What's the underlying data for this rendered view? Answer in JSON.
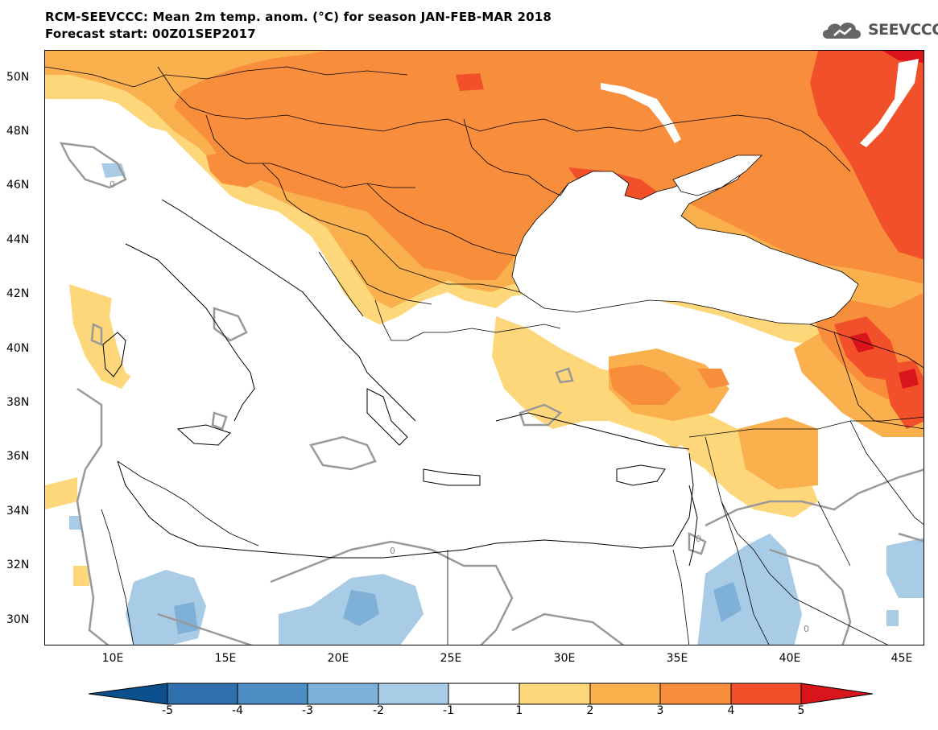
{
  "title_line1": "RCM-SEEVCCC: Mean 2m temp. anom. (°C) for season JAN-FEB-MAR 2018",
  "title_line2": "Forecast start: 00Z01SEP2017",
  "logo": {
    "text": "SEEVCCC",
    "icon": "cloud-logo-icon"
  },
  "map": {
    "lon_range": [
      7,
      46
    ],
    "lat_range": [
      29,
      51
    ],
    "lat_labels": [
      "50N",
      "48N",
      "46N",
      "44N",
      "42N",
      "40N",
      "38N",
      "36N",
      "34N",
      "32N",
      "30N"
    ],
    "lat_values": [
      50,
      48,
      46,
      44,
      42,
      40,
      38,
      36,
      34,
      32,
      30
    ],
    "lon_labels": [
      "10E",
      "15E",
      "20E",
      "25E",
      "30E",
      "35E",
      "40E",
      "45E"
    ],
    "lon_values": [
      10,
      15,
      20,
      25,
      30,
      35,
      40,
      45
    ],
    "contour_label": "0"
  },
  "colorbar": {
    "levels": [
      "-5",
      "-4",
      "-3",
      "-2",
      "-1",
      "1",
      "2",
      "3",
      "4",
      "5"
    ],
    "colors": [
      "#0b4f8c",
      "#2f6fae",
      "#4c8ec4",
      "#7fb0d8",
      "#a8cbe6",
      "#ffffff",
      "#fdd77a",
      "#fbb04e",
      "#f88d3c",
      "#f2502a",
      "#d9151b"
    ]
  }
}
